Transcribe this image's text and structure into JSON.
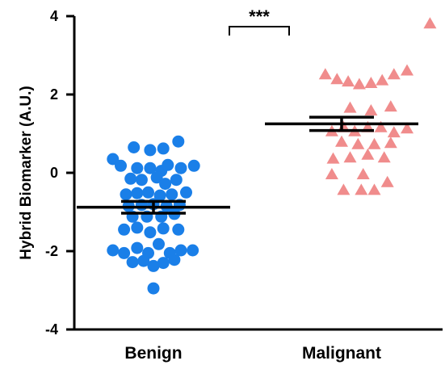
{
  "chart_data": {
    "type": "scatter",
    "title": "",
    "xlabel": "",
    "ylabel": "Hybrid Biomarker (A.U.)",
    "ylim": [
      -4,
      4
    ],
    "yticks": [
      -4,
      -2,
      0,
      2,
      4
    ],
    "ytick_labels": [
      "-4",
      "-2",
      "0",
      "2",
      "4"
    ],
    "categories": [
      "Benign",
      "Malignant"
    ],
    "significance": {
      "label": "***",
      "between": [
        "Benign",
        "Malignant"
      ]
    },
    "grid": false,
    "legend": "none",
    "series": [
      {
        "category": "Benign",
        "color": "#1a7fe8",
        "marker": "circle",
        "mean": -0.88,
        "sem_upper": -0.73,
        "sem_lower": -1.03,
        "points": [
          {
            "x": 0.2,
            "y": 0.65
          },
          {
            "x": 0.45,
            "y": 0.58
          },
          {
            "x": 0.65,
            "y": 0.62
          },
          {
            "x": 0.88,
            "y": 0.8
          },
          {
            "x": -0.12,
            "y": 0.35
          },
          {
            "x": 0.0,
            "y": 0.18
          },
          {
            "x": 0.25,
            "y": 0.12
          },
          {
            "x": 0.45,
            "y": 0.12
          },
          {
            "x": 0.62,
            "y": 0.05
          },
          {
            "x": 0.72,
            "y": 0.2
          },
          {
            "x": 0.92,
            "y": 0.12
          },
          {
            "x": 1.12,
            "y": 0.18
          },
          {
            "x": 0.15,
            "y": -0.15
          },
          {
            "x": 0.32,
            "y": -0.18
          },
          {
            "x": 0.55,
            "y": -0.12
          },
          {
            "x": 0.68,
            "y": -0.28
          },
          {
            "x": 0.85,
            "y": -0.18
          },
          {
            "x": 0.08,
            "y": -0.55
          },
          {
            "x": 0.25,
            "y": -0.52
          },
          {
            "x": 0.42,
            "y": -0.5
          },
          {
            "x": 0.6,
            "y": -0.58
          },
          {
            "x": 0.78,
            "y": -0.55
          },
          {
            "x": 1.0,
            "y": -0.5
          },
          {
            "x": 0.12,
            "y": -0.85
          },
          {
            "x": 0.32,
            "y": -0.82
          },
          {
            "x": 0.5,
            "y": -0.8
          },
          {
            "x": 0.7,
            "y": -0.85
          },
          {
            "x": 0.9,
            "y": -0.82
          },
          {
            "x": 0.18,
            "y": -1.12
          },
          {
            "x": 0.4,
            "y": -1.12
          },
          {
            "x": 0.62,
            "y": -1.12
          },
          {
            "x": 0.82,
            "y": -1.05
          },
          {
            "x": 0.05,
            "y": -1.45
          },
          {
            "x": 0.25,
            "y": -1.4
          },
          {
            "x": 0.45,
            "y": -1.52
          },
          {
            "x": 0.65,
            "y": -1.42
          },
          {
            "x": 0.88,
            "y": -1.45
          },
          {
            "x": -0.12,
            "y": -1.98
          },
          {
            "x": 0.05,
            "y": -2.05
          },
          {
            "x": 0.25,
            "y": -1.92
          },
          {
            "x": 0.42,
            "y": -2.05
          },
          {
            "x": 0.58,
            "y": -1.82
          },
          {
            "x": 0.75,
            "y": -2.05
          },
          {
            "x": 0.92,
            "y": -1.98
          },
          {
            "x": 1.1,
            "y": -1.98
          },
          {
            "x": 0.18,
            "y": -2.28
          },
          {
            "x": 0.35,
            "y": -2.25
          },
          {
            "x": 0.5,
            "y": -2.38
          },
          {
            "x": 0.65,
            "y": -2.3
          },
          {
            "x": 0.82,
            "y": -2.22
          },
          {
            "x": 0.5,
            "y": -2.95
          }
        ]
      },
      {
        "category": "Malignant",
        "color": "#f08c8c",
        "marker": "triangle",
        "mean": 1.25,
        "sem_upper": 1.42,
        "sem_lower": 1.08,
        "points": [
          {
            "x": 1.8,
            "y": 3.8
          },
          {
            "x": 0.2,
            "y": 2.5
          },
          {
            "x": 0.38,
            "y": 2.38
          },
          {
            "x": 0.55,
            "y": 2.32
          },
          {
            "x": 0.72,
            "y": 2.25
          },
          {
            "x": 0.9,
            "y": 2.28
          },
          {
            "x": 1.07,
            "y": 2.35
          },
          {
            "x": 1.25,
            "y": 2.5
          },
          {
            "x": 1.45,
            "y": 2.6
          },
          {
            "x": 0.58,
            "y": 1.65
          },
          {
            "x": 0.9,
            "y": 1.58
          },
          {
            "x": 1.2,
            "y": 1.68
          },
          {
            "x": 0.3,
            "y": 1.05
          },
          {
            "x": 0.48,
            "y": 1.15
          },
          {
            "x": 0.65,
            "y": 1.05
          },
          {
            "x": 0.85,
            "y": 1.15
          },
          {
            "x": 1.05,
            "y": 1.15
          },
          {
            "x": 1.25,
            "y": 1.02
          },
          {
            "x": 1.45,
            "y": 1.12
          },
          {
            "x": 0.45,
            "y": 0.78
          },
          {
            "x": 0.7,
            "y": 0.72
          },
          {
            "x": 0.95,
            "y": 0.72
          },
          {
            "x": 1.2,
            "y": 0.75
          },
          {
            "x": 0.32,
            "y": 0.35
          },
          {
            "x": 0.58,
            "y": 0.38
          },
          {
            "x": 0.85,
            "y": 0.45
          },
          {
            "x": 1.1,
            "y": 0.38
          },
          {
            "x": 0.3,
            "y": -0.05
          },
          {
            "x": 0.78,
            "y": -0.05
          },
          {
            "x": 0.48,
            "y": -0.45
          },
          {
            "x": 0.75,
            "y": -0.45
          },
          {
            "x": 0.95,
            "y": -0.45
          },
          {
            "x": 1.15,
            "y": -0.25
          }
        ]
      }
    ]
  }
}
